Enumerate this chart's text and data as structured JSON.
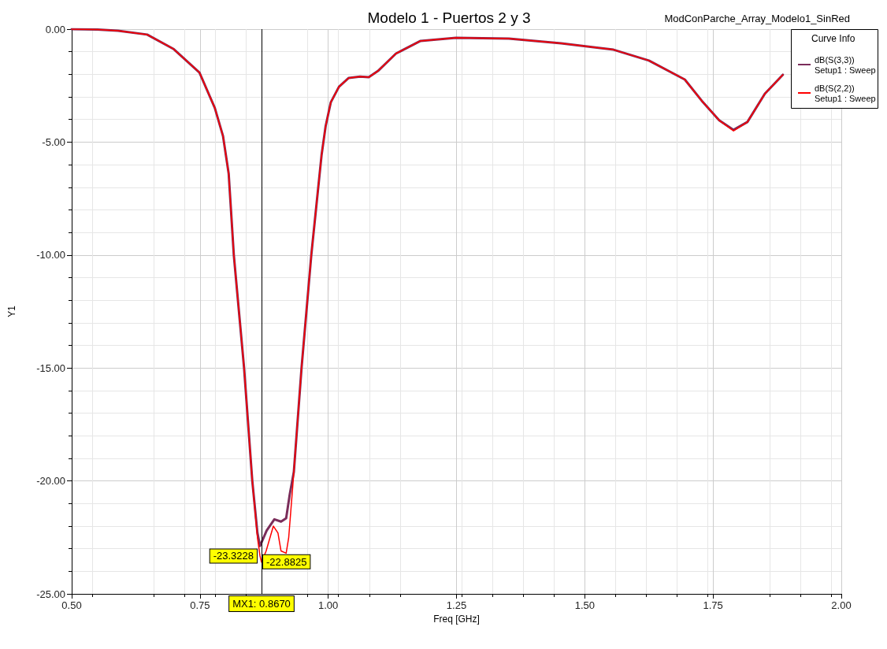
{
  "chart_data": {
    "type": "line",
    "title": "Modelo 1 - Puertos 2 y 3",
    "subtitle": "ModConParche_Array_Modelo1_SinRed",
    "xlabel": "Freq [GHz]",
    "ylabel": "Y1",
    "legend_title": "Curve Info",
    "legend": "top right",
    "grid": true,
    "marker": "none",
    "line_style": "solid",
    "xlim": [
      0.5,
      2.0
    ],
    "ylim": [
      -25,
      0
    ],
    "xticks": [
      {
        "value": 0.5,
        "label": "0.50"
      },
      {
        "value": 0.75,
        "label": "0.75"
      },
      {
        "value": 1.0,
        "label": "1.00"
      },
      {
        "value": 1.25,
        "label": "1.25"
      },
      {
        "value": 1.5,
        "label": "1.50"
      },
      {
        "value": 1.75,
        "label": "1.75"
      },
      {
        "value": 2.0,
        "label": "2.00"
      }
    ],
    "yticks": [
      {
        "value": -25,
        "label": "-25.00"
      },
      {
        "value": -20,
        "label": "-20.00"
      },
      {
        "value": -15,
        "label": "-15.00"
      },
      {
        "value": -10,
        "label": "-10.00"
      },
      {
        "value": -5,
        "label": "-5.00"
      },
      {
        "value": 0,
        "label": "0.00"
      }
    ],
    "series": [
      {
        "name": "dB(S(3,3))\nSetup1 : Sweep",
        "color": "#7b2d5a",
        "x": [
          0.5,
          0.55,
          0.59,
          0.647,
          0.698,
          0.749,
          0.779,
          0.795,
          0.806,
          0.816,
          0.836,
          0.852,
          0.862,
          0.867,
          0.88,
          0.895,
          0.908,
          0.918,
          0.925,
          0.933,
          0.948,
          0.967,
          0.987,
          0.995,
          1.005,
          1.021,
          1.04,
          1.062,
          1.079,
          1.097,
          1.132,
          1.18,
          1.249,
          1.352,
          1.454,
          1.556,
          1.625,
          1.695,
          1.728,
          1.762,
          1.79,
          1.817,
          1.851,
          1.886
        ],
        "values": [
          0,
          -0.02,
          -0.07,
          -0.24,
          -0.87,
          -1.92,
          -3.49,
          -4.74,
          -6.4,
          -10,
          -15,
          -20,
          -22.3,
          -22.8825,
          -22.2,
          -21.7,
          -21.8,
          -21.65,
          -20.6,
          -19.6,
          -15,
          -10,
          -5.58,
          -4.29,
          -3.24,
          -2.55,
          -2.16,
          -2.1,
          -2.13,
          -1.85,
          -1.08,
          -0.52,
          -0.38,
          -0.42,
          -0.63,
          -0.91,
          -1.39,
          -2.23,
          -3.17,
          -4.04,
          -4.46,
          -4.11,
          -2.86,
          -2.02
        ]
      },
      {
        "name": "dB(S(2,2))\nSetup1 : Sweep",
        "color": "#ff0000",
        "x": [
          0.5,
          0.55,
          0.59,
          0.647,
          0.698,
          0.749,
          0.779,
          0.795,
          0.806,
          0.816,
          0.836,
          0.852,
          0.862,
          0.867,
          0.87,
          0.879,
          0.893,
          0.902,
          0.908,
          0.918,
          0.923,
          0.931,
          0.948,
          0.967,
          0.987,
          0.995,
          1.005,
          1.021,
          1.04,
          1.062,
          1.079,
          1.097,
          1.132,
          1.18,
          1.249,
          1.352,
          1.454,
          1.556,
          1.625,
          1.695,
          1.728,
          1.762,
          1.79,
          1.817,
          1.851,
          1.886
        ],
        "values": [
          0,
          -0.02,
          -0.07,
          -0.24,
          -0.87,
          -1.92,
          -3.49,
          -4.74,
          -6.4,
          -10,
          -15,
          -20,
          -22.5,
          -23.3228,
          -23.6,
          -23.1,
          -22.0,
          -22.3,
          -23.1,
          -23.2,
          -22.5,
          -20.2,
          -15,
          -10,
          -5.58,
          -4.29,
          -3.24,
          -2.55,
          -2.16,
          -2.1,
          -2.13,
          -1.85,
          -1.08,
          -0.52,
          -0.38,
          -0.42,
          -0.63,
          -0.91,
          -1.39,
          -2.23,
          -3.17,
          -4.04,
          -4.5,
          -4.11,
          -2.86,
          -2.02
        ]
      }
    ],
    "ref_lines": [
      {
        "axis": "x",
        "value": 0.867,
        "label": "MX1: 0.8670",
        "color": "#000000"
      }
    ],
    "annotations": [
      {
        "text": "-23.3228",
        "x": 0.867,
        "y": -23.3228
      },
      {
        "text": "-22.8825",
        "x": 0.867,
        "y": -22.8825
      }
    ]
  }
}
